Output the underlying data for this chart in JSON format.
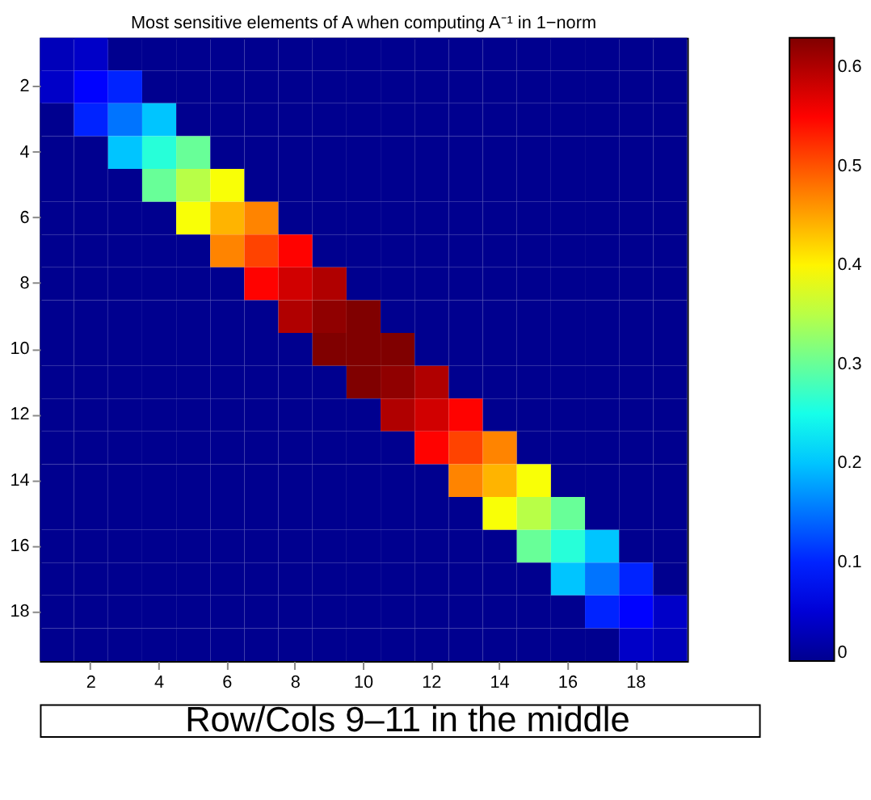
{
  "chart_data": {
    "type": "heatmap",
    "title": "Most sensitive elements of A when computing A⁻¹ in 1−norm",
    "categories": [
      null,
      "2",
      null,
      "4",
      null,
      "6",
      null,
      "8",
      null,
      "10",
      null,
      "12",
      null,
      "14",
      null,
      "16",
      null,
      "18",
      null
    ],
    "y_categories": [
      null,
      "2",
      null,
      "4",
      null,
      "6",
      null,
      "8",
      null,
      "10",
      null,
      "12",
      null,
      "14",
      null,
      "16",
      null,
      "18",
      null
    ],
    "cells": [
      [
        0.03,
        0.04,
        0,
        0,
        0,
        0,
        0,
        0,
        0,
        0,
        0,
        0,
        0,
        0,
        0,
        0,
        0,
        0,
        0
      ],
      [
        0.04,
        0.08,
        0.1,
        0,
        0,
        0,
        0,
        0,
        0,
        0,
        0,
        0,
        0,
        0,
        0,
        0,
        0,
        0,
        0
      ],
      [
        0,
        0.1,
        0.15,
        0.2,
        0,
        0,
        0,
        0,
        0,
        0,
        0,
        0,
        0,
        0,
        0,
        0,
        0,
        0,
        0
      ],
      [
        0,
        0,
        0.2,
        0.26,
        0.3,
        0,
        0,
        0,
        0,
        0,
        0,
        0,
        0,
        0,
        0,
        0,
        0,
        0,
        0
      ],
      [
        0,
        0,
        0,
        0.3,
        0.35,
        0.39,
        0,
        0,
        0,
        0,
        0,
        0,
        0,
        0,
        0,
        0,
        0,
        0,
        0
      ],
      [
        0,
        0,
        0,
        0,
        0.39,
        0.44,
        0.47,
        0,
        0,
        0,
        0,
        0,
        0,
        0,
        0,
        0,
        0,
        0,
        0
      ],
      [
        0,
        0,
        0,
        0,
        0,
        0.47,
        0.51,
        0.55,
        0,
        0,
        0,
        0,
        0,
        0,
        0,
        0,
        0,
        0,
        0
      ],
      [
        0,
        0,
        0,
        0,
        0,
        0,
        0.55,
        0.58,
        0.6,
        0,
        0,
        0,
        0,
        0,
        0,
        0,
        0,
        0,
        0
      ],
      [
        0,
        0,
        0,
        0,
        0,
        0,
        0,
        0.6,
        0.62,
        0.63,
        0,
        0,
        0,
        0,
        0,
        0,
        0,
        0,
        0
      ],
      [
        0,
        0,
        0,
        0,
        0,
        0,
        0,
        0,
        0.63,
        0.63,
        0.63,
        0,
        0,
        0,
        0,
        0,
        0,
        0,
        0
      ],
      [
        0,
        0,
        0,
        0,
        0,
        0,
        0,
        0,
        0,
        0.63,
        0.62,
        0.6,
        0,
        0,
        0,
        0,
        0,
        0,
        0
      ],
      [
        0,
        0,
        0,
        0,
        0,
        0,
        0,
        0,
        0,
        0,
        0.6,
        0.58,
        0.55,
        0,
        0,
        0,
        0,
        0,
        0
      ],
      [
        0,
        0,
        0,
        0,
        0,
        0,
        0,
        0,
        0,
        0,
        0,
        0.55,
        0.51,
        0.47,
        0,
        0,
        0,
        0,
        0
      ],
      [
        0,
        0,
        0,
        0,
        0,
        0,
        0,
        0,
        0,
        0,
        0,
        0,
        0.47,
        0.44,
        0.39,
        0,
        0,
        0,
        0
      ],
      [
        0,
        0,
        0,
        0,
        0,
        0,
        0,
        0,
        0,
        0,
        0,
        0,
        0,
        0.39,
        0.35,
        0.3,
        0,
        0,
        0
      ],
      [
        0,
        0,
        0,
        0,
        0,
        0,
        0,
        0,
        0,
        0,
        0,
        0,
        0,
        0,
        0.3,
        0.26,
        0.2,
        0,
        0
      ],
      [
        0,
        0,
        0,
        0,
        0,
        0,
        0,
        0,
        0,
        0,
        0,
        0,
        0,
        0,
        0,
        0.2,
        0.15,
        0.1,
        0
      ],
      [
        0,
        0,
        0,
        0,
        0,
        0,
        0,
        0,
        0,
        0,
        0,
        0,
        0,
        0,
        0,
        0,
        0.1,
        0.08,
        0.04
      ],
      [
        0,
        0,
        0,
        0,
        0,
        0,
        0,
        0,
        0,
        0,
        0,
        0,
        0,
        0,
        0,
        0,
        0,
        0.04,
        0.03
      ]
    ],
    "clim": [
      0,
      0.63
    ],
    "cticks": [
      0,
      0.1,
      0.2,
      0.3,
      0.4,
      0.5,
      0.6
    ],
    "annotations": [
      "Row/Cols 9–11 in the middle"
    ]
  }
}
